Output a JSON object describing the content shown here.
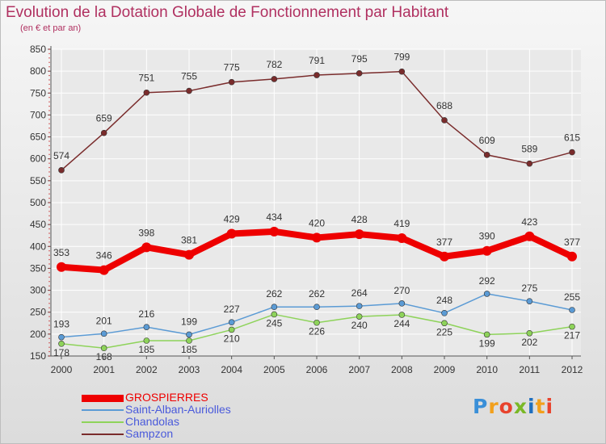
{
  "header": {
    "title": "Evolution de la Dotation Globale de Fonctionnement par Habitant",
    "subtitle": "(en € et par an)"
  },
  "logo": {
    "text": "Proxiti",
    "colors": [
      "#3a8fd8",
      "#f2a01c",
      "#e8432d",
      "#7ab826",
      "#1f6fbf",
      "#f2a01c",
      "#e8432d"
    ]
  },
  "colors": {
    "axis": "#555555",
    "grid": "#ffffff",
    "tick_text": "#333333",
    "label_text": "#333333"
  },
  "chart_data": {
    "type": "line",
    "title": "Evolution de la Dotation Globale de Fonctionnement par Habitant",
    "subtitle": "(en € et par an)",
    "x": [
      "2000",
      "2001",
      "2002",
      "2003",
      "2004",
      "2005",
      "2006",
      "2007",
      "2008",
      "2009",
      "2010",
      "2011",
      "2012"
    ],
    "ylim": [
      150,
      850
    ],
    "yticks": [
      150,
      200,
      250,
      300,
      350,
      400,
      450,
      500,
      550,
      600,
      650,
      700,
      750,
      800,
      850
    ],
    "grid": true,
    "legend": "bottom-left",
    "series": [
      {
        "name": "GROSPIERRES",
        "color": "#ee0000",
        "values": [
          353,
          346,
          398,
          381,
          429,
          434,
          420,
          428,
          419,
          377,
          390,
          423,
          377
        ]
      },
      {
        "name": "Saint-Alban-Auriolles",
        "color": "#5b9bd5",
        "values": [
          193,
          201,
          216,
          199,
          227,
          262,
          262,
          264,
          270,
          248,
          292,
          275,
          255
        ]
      },
      {
        "name": "Chandolas",
        "color": "#8ed35a",
        "values": [
          178,
          168,
          185,
          185,
          210,
          245,
          226,
          240,
          244,
          225,
          199,
          202,
          217
        ]
      },
      {
        "name": "Sampzon",
        "color": "#7a2c2c",
        "values": [
          574,
          659,
          751,
          755,
          775,
          782,
          791,
          795,
          799,
          688,
          609,
          589,
          615
        ]
      }
    ]
  }
}
